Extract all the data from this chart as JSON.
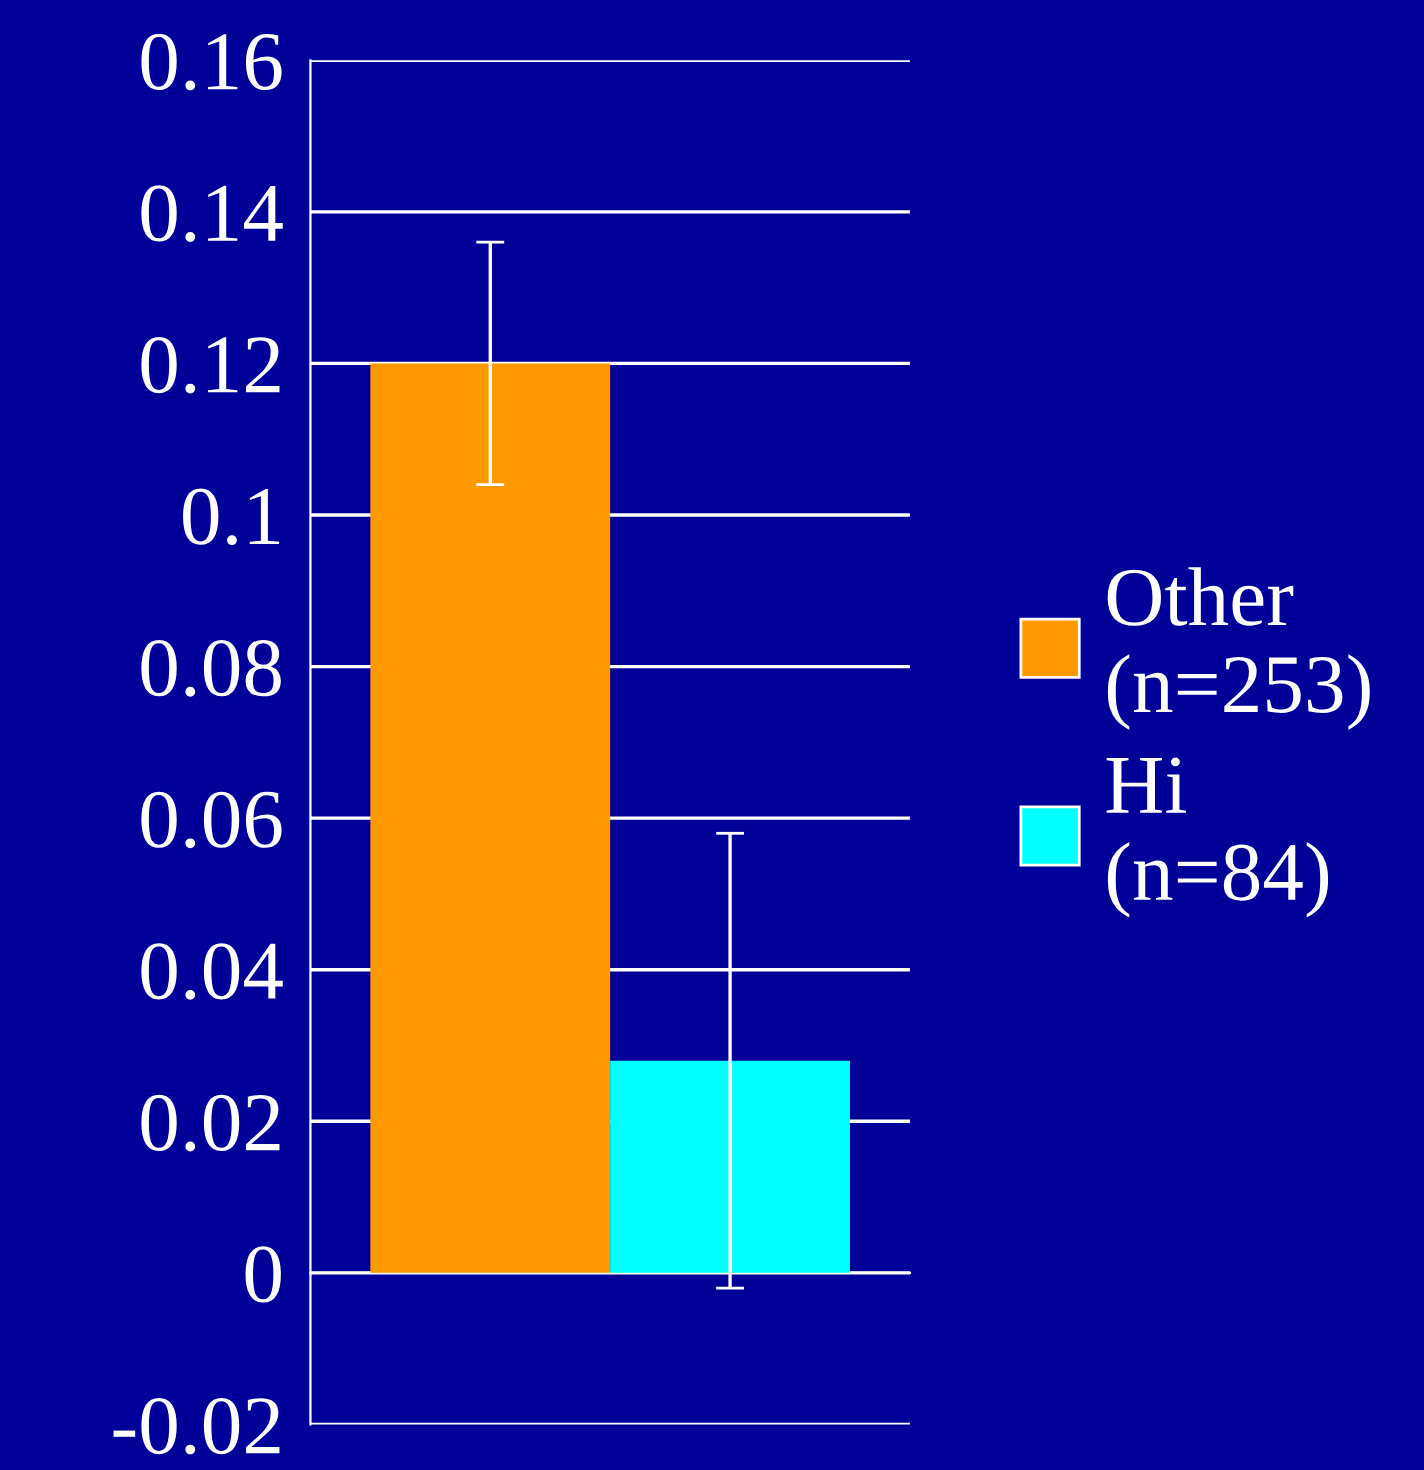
{
  "chart_data": {
    "type": "bar",
    "categories": [
      null
    ],
    "series": [
      {
        "name": "Other\n(n=253)",
        "color": "#ff9900",
        "values": [
          0.12
        ],
        "errors": [
          0.016
        ]
      },
      {
        "name": "Hi\n(n=84)",
        "color": "#00ffff",
        "values": [
          0.028
        ],
        "errors": [
          0.03
        ]
      }
    ],
    "ylim": [
      -0.02,
      0.16
    ],
    "yticks": [
      -0.02,
      0,
      0.02,
      0.04,
      0.06,
      0.08,
      0.1,
      0.12,
      0.14,
      0.16
    ],
    "grid": "y",
    "legend": "right"
  }
}
